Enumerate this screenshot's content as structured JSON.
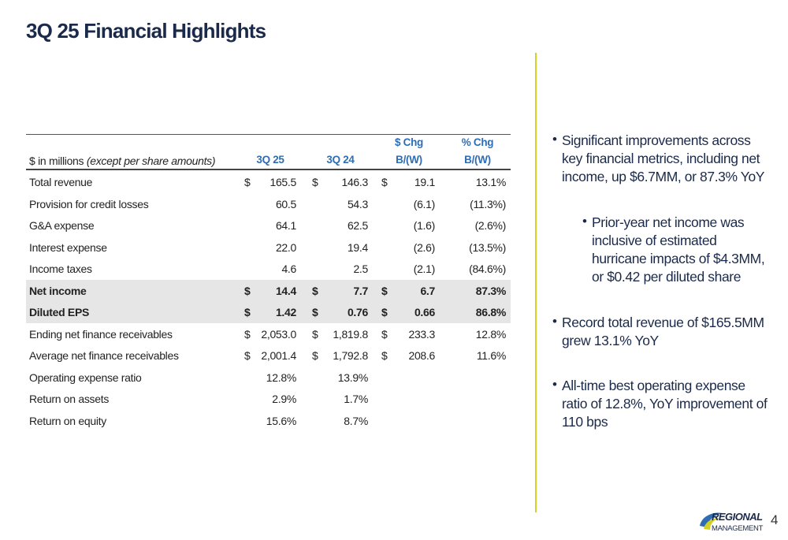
{
  "title": "3Q 25 Financial Highlights",
  "table": {
    "header": {
      "units": "$ in millions",
      "units_note": "(except per share amounts)",
      "columns": [
        [
          "3Q 25"
        ],
        [
          "3Q 24"
        ],
        [
          "$ Chg",
          "B/(W)"
        ],
        [
          "% Chg",
          "B/(W)"
        ]
      ]
    },
    "rows": [
      {
        "label": "Total revenue",
        "cells": [
          {
            "currency": "$",
            "value": "165.5"
          },
          {
            "currency": "$",
            "value": "146.3"
          },
          {
            "currency": "$",
            "value": "19.1"
          },
          {
            "value": "13.1%"
          }
        ]
      },
      {
        "label": "Provision for credit losses",
        "cells": [
          {
            "value": "60.5"
          },
          {
            "value": "54.3"
          },
          {
            "value": "(6.1)"
          },
          {
            "value": "(11.3%)"
          }
        ]
      },
      {
        "label": "G&A expense",
        "cells": [
          {
            "value": "64.1"
          },
          {
            "value": "62.5"
          },
          {
            "value": "(1.6)"
          },
          {
            "value": "(2.6%)"
          }
        ]
      },
      {
        "label": "Interest expense",
        "cells": [
          {
            "value": "22.0"
          },
          {
            "value": "19.4"
          },
          {
            "value": "(2.6)"
          },
          {
            "value": "(13.5%)"
          }
        ]
      },
      {
        "label": "Income taxes",
        "cells": [
          {
            "value": "4.6"
          },
          {
            "value": "2.5"
          },
          {
            "value": "(2.1)"
          },
          {
            "value": "(84.6%)"
          }
        ]
      },
      {
        "label": "Net income",
        "bold": true,
        "shaded": true,
        "cells": [
          {
            "currency": "$",
            "value": "14.4"
          },
          {
            "currency": "$",
            "value": "7.7"
          },
          {
            "currency": "$",
            "value": "6.7"
          },
          {
            "value": "87.3%"
          }
        ]
      },
      {
        "label": "Diluted EPS",
        "bold": true,
        "shaded": true,
        "cells": [
          {
            "currency": "$",
            "value": "1.42"
          },
          {
            "currency": "$",
            "value": "0.76"
          },
          {
            "currency": "$",
            "value": "0.66"
          },
          {
            "value": "86.8%"
          }
        ]
      },
      {
        "label": "Ending net finance receivables",
        "cells": [
          {
            "currency": "$",
            "value": "2,053.0"
          },
          {
            "currency": "$",
            "value": "1,819.8"
          },
          {
            "currency": "$",
            "value": "233.3"
          },
          {
            "value": "12.8%"
          }
        ]
      },
      {
        "label": "Average net finance receivables",
        "cells": [
          {
            "currency": "$",
            "value": "2,001.4"
          },
          {
            "currency": "$",
            "value": "1,792.8"
          },
          {
            "currency": "$",
            "value": "208.6"
          },
          {
            "value": "11.6%"
          }
        ]
      },
      {
        "label": "Operating expense ratio",
        "cells": [
          {
            "value": "12.8%"
          },
          {
            "value": "13.9%"
          }
        ]
      },
      {
        "label": "Return on assets",
        "cells": [
          {
            "value": "2.9%"
          },
          {
            "value": "1.7%"
          }
        ]
      },
      {
        "label": "Return on equity",
        "cells": [
          {
            "value": "15.6%"
          },
          {
            "value": "8.7%"
          }
        ]
      }
    ]
  },
  "bullets": [
    {
      "level": 0,
      "text": "Significant improvements across key financial metrics, including net income, up $6.7MM, or 87.3% YoY"
    },
    {
      "level": 1,
      "text": "Prior-year net income was inclusive of estimated hurricane impacts of $4.3MM, or $0.42 per diluted share"
    },
    {
      "level": 0,
      "text": "Record total revenue of $165.5MM grew 13.1% YoY"
    },
    {
      "level": 0,
      "text": "All-time best operating expense ratio of 12.8%, YoY improvement of 110 bps"
    }
  ],
  "footer": {
    "logo": [
      "REGIONAL",
      "MANAGEMENT"
    ],
    "page": "4"
  }
}
